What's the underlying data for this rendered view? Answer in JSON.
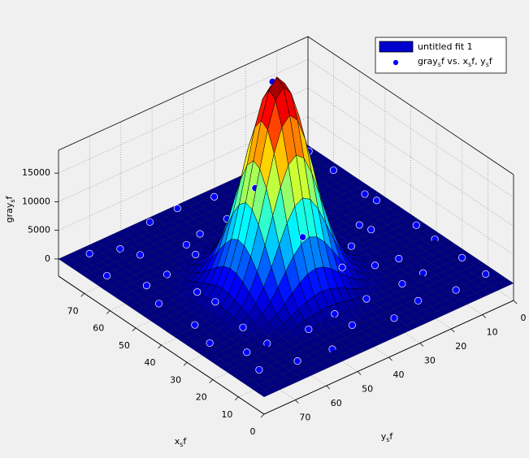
{
  "chart_data": {
    "type": "surface",
    "xlabel": [
      "x",
      "s",
      "f"
    ],
    "ylabel": [
      "y",
      "s",
      "f"
    ],
    "zlabel": [
      "gray",
      "s",
      "f"
    ],
    "xlim": [
      0,
      80
    ],
    "ylim": [
      0,
      80
    ],
    "zlim": [
      -3000,
      19000
    ],
    "xticks": [
      0,
      10,
      20,
      30,
      40,
      50,
      60,
      70
    ],
    "yticks": [
      0,
      10,
      20,
      30,
      40,
      50,
      60,
      70
    ],
    "zticks": [
      0,
      5000,
      10000,
      15000
    ],
    "grid": true,
    "legend": "northeast",
    "surface": {
      "name": "untitled fit 1",
      "color": "#0000cc",
      "amplitude": 36000,
      "x0": 37,
      "y0": 45,
      "sigma": 8
    },
    "series": [
      {
        "name": [
          "gray",
          "s",
          "f vs. x",
          "s",
          "f, y",
          "s",
          "f"
        ],
        "color": "#0000ff",
        "x": [
          6,
          14,
          27,
          33,
          46,
          53,
          64,
          76,
          3,
          17,
          24,
          36,
          43,
          57,
          65,
          73,
          8,
          13,
          26,
          34,
          47,
          55,
          63,
          77,
          4,
          16,
          23,
          37,
          44,
          56,
          66,
          74,
          7,
          15,
          25,
          38,
          45,
          54,
          65,
          75,
          5,
          13,
          27,
          35,
          46,
          57,
          63,
          76,
          4,
          17,
          24,
          36,
          43,
          56,
          64,
          73,
          8,
          14,
          26,
          33,
          47,
          53,
          66,
          74
        ],
        "y": [
          4,
          5,
          3,
          4,
          6,
          4,
          5,
          3,
          16,
          15,
          17,
          16,
          14,
          16,
          15,
          17,
          24,
          25,
          23,
          24,
          26,
          24,
          25,
          23,
          35,
          34,
          36,
          35,
          35,
          36,
          34,
          35,
          46,
          45,
          47,
          46,
          46,
          45,
          47,
          46,
          54,
          55,
          53,
          54,
          54,
          55,
          53,
          54,
          66,
          65,
          67,
          66,
          66,
          65,
          67,
          66,
          75,
          74,
          76,
          75,
          75,
          74,
          76,
          75
        ],
        "z": [
          800,
          1500,
          300,
          1200,
          2100,
          600,
          1700,
          900,
          1900,
          400,
          1300,
          2500,
          700,
          1600,
          200,
          1100,
          500,
          2200,
          1000,
          2200,
          1600,
          300,
          1800,
          700,
          1400,
          900,
          4800,
          17300,
          12000,
          2100,
          600,
          1500,
          2000,
          1300,
          12200,
          35200,
          22900,
          4600,
          700,
          1900,
          400,
          1700,
          9400,
          19500,
          10800,
          1500,
          900,
          1200,
          1600,
          500,
          1700,
          2300,
          1900,
          800,
          2300,
          400,
          1100,
          2100,
          600,
          1400,
          900,
          2000,
          300,
          1500
        ]
      }
    ]
  }
}
